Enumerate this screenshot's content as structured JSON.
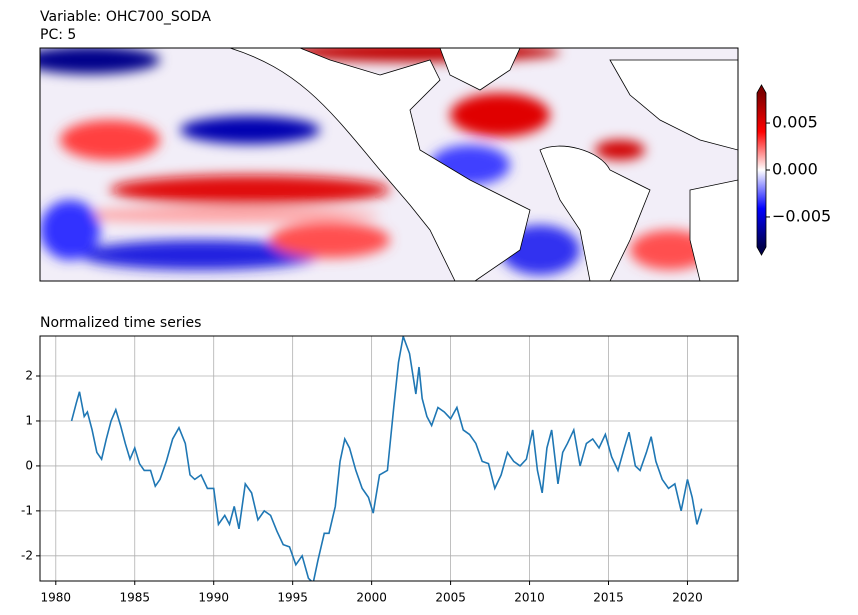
{
  "chart_data": [
    {
      "type": "map",
      "title": "Variable: OHC700_SODA",
      "subtitle": "PC: 5",
      "colormap": [
        "#00004c",
        "#0000ff",
        "#ffffff",
        "#ff0000",
        "#7f0000"
      ],
      "clim": [
        -0.0082,
        0.0082
      ],
      "cticks": [
        {
          "value": -0.005,
          "label": "−0.005"
        },
        {
          "value": 0,
          "label": "0.000"
        },
        {
          "value": 0.005,
          "label": "0.005"
        }
      ]
    },
    {
      "type": "line",
      "title": "Normalized time series",
      "color": "#1f77b4",
      "grid": true,
      "xlim": [
        1979,
        2023.2
      ],
      "ylim": [
        -2.56,
        2.89
      ],
      "xticks": [
        1980,
        1985,
        1990,
        1995,
        2000,
        2005,
        2010,
        2015,
        2020
      ],
      "yticks": [
        -2,
        -1,
        0,
        1,
        2
      ],
      "x": [
        1981.0,
        1981.3,
        1981.5,
        1981.8,
        1982.0,
        1982.3,
        1982.6,
        1982.9,
        1983.2,
        1983.5,
        1983.8,
        1984.1,
        1984.4,
        1984.7,
        1985.0,
        1985.3,
        1985.6,
        1986.0,
        1986.3,
        1986.6,
        1987.0,
        1987.4,
        1987.8,
        1988.2,
        1988.5,
        1988.8,
        1989.2,
        1989.6,
        1990.0,
        1990.3,
        1990.7,
        1991.0,
        1991.3,
        1991.6,
        1992.0,
        1992.4,
        1992.8,
        1993.2,
        1993.6,
        1994.0,
        1994.4,
        1994.8,
        1995.2,
        1995.6,
        1996.0,
        1996.3,
        1996.6,
        1997.0,
        1997.3,
        1997.7,
        1998.0,
        1998.3,
        1998.6,
        1999.0,
        1999.4,
        1999.8,
        2000.1,
        2000.5,
        2001.0,
        2001.4,
        2001.7,
        2002.0,
        2002.4,
        2002.8,
        2003.0,
        2003.2,
        2003.5,
        2003.8,
        2004.2,
        2004.6,
        2005.0,
        2005.4,
        2005.8,
        2006.2,
        2006.6,
        2007.0,
        2007.4,
        2007.8,
        2008.2,
        2008.6,
        2009.0,
        2009.4,
        2009.8,
        2010.2,
        2010.5,
        2010.8,
        2011.1,
        2011.4,
        2011.8,
        2012.1,
        2012.4,
        2012.8,
        2013.2,
        2013.6,
        2014.0,
        2014.4,
        2014.8,
        2015.2,
        2015.6,
        2016.0,
        2016.3,
        2016.7,
        2017.0,
        2017.4,
        2017.7,
        2018.0,
        2018.4,
        2018.8,
        2019.2,
        2019.6,
        2020.0,
        2020.3,
        2020.6,
        2020.9
      ],
      "values": [
        1.0,
        1.4,
        1.65,
        1.1,
        1.2,
        0.8,
        0.3,
        0.15,
        0.6,
        1.0,
        1.25,
        0.9,
        0.5,
        0.15,
        0.4,
        0.05,
        -0.1,
        -0.1,
        -0.45,
        -0.3,
        0.1,
        0.6,
        0.85,
        0.5,
        -0.2,
        -0.3,
        -0.2,
        -0.5,
        -0.5,
        -1.3,
        -1.1,
        -1.3,
        -0.9,
        -1.4,
        -0.4,
        -0.6,
        -1.2,
        -1.0,
        -1.1,
        -1.45,
        -1.75,
        -1.8,
        -2.2,
        -2.0,
        -2.5,
        -2.6,
        -2.1,
        -1.5,
        -1.5,
        -0.9,
        0.1,
        0.6,
        0.4,
        -0.1,
        -0.5,
        -0.7,
        -1.05,
        -0.2,
        -0.1,
        1.3,
        2.3,
        2.88,
        2.5,
        1.6,
        2.2,
        1.5,
        1.1,
        0.9,
        1.3,
        1.2,
        1.05,
        1.3,
        0.8,
        0.7,
        0.5,
        0.1,
        0.05,
        -0.5,
        -0.2,
        0.3,
        0.1,
        0.0,
        0.15,
        0.8,
        -0.1,
        -0.6,
        0.4,
        0.8,
        -0.4,
        0.3,
        0.5,
        0.8,
        0.0,
        0.5,
        0.6,
        0.4,
        0.7,
        0.2,
        -0.1,
        0.4,
        0.75,
        0.0,
        -0.1,
        0.3,
        0.65,
        0.1,
        -0.3,
        -0.5,
        -0.4,
        -1.0,
        -0.3,
        -0.7,
        -1.3,
        -0.95
      ]
    }
  ]
}
